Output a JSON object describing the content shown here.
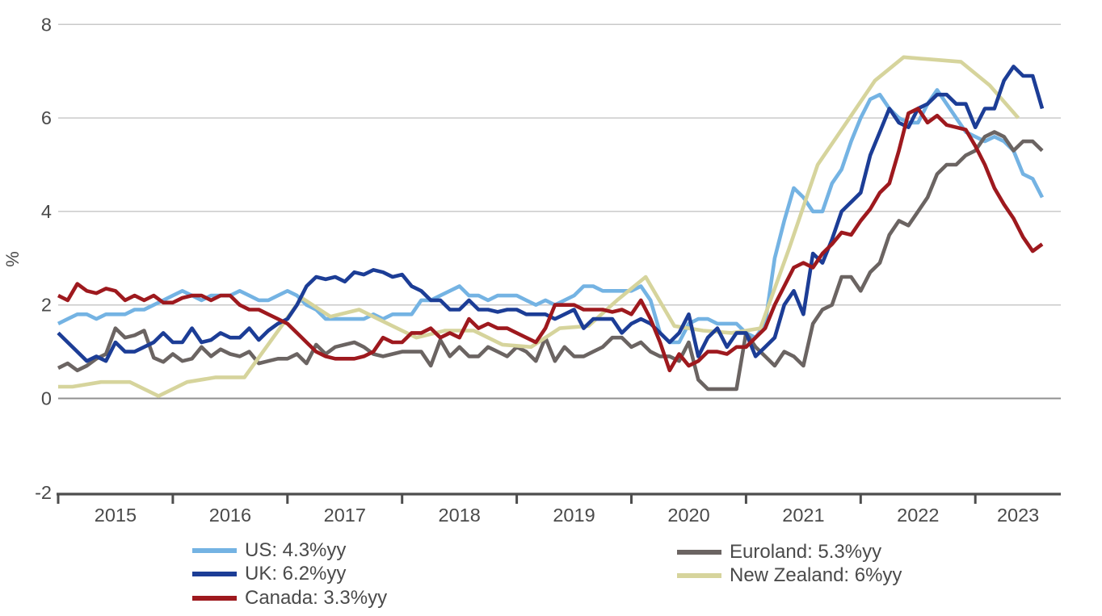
{
  "chart_data": {
    "type": "line",
    "title": "",
    "ylabel": "%",
    "x_tick_labels": [
      "2015",
      "2016",
      "2017",
      "2018",
      "2019",
      "2020",
      "2021",
      "2022",
      "2023"
    ],
    "y_tick_labels": [
      "8",
      "6",
      "4",
      "2",
      "0",
      "-2"
    ],
    "y_gridlines": [
      8,
      6,
      4,
      2,
      0
    ],
    "ylim": [
      -2,
      8
    ],
    "x_range_years": [
      "2015-01",
      "2023-08"
    ],
    "grid_color": "#c9c9c9",
    "zero_line_color": "#909090",
    "axis_color": "#4d4d4d",
    "tick_text_color": "#4a4a4a",
    "legend_position": "bottom",
    "series": [
      {
        "name": "us",
        "label": "US: 4.3%yy",
        "color": "#74b3e3",
        "freq": "monthly",
        "start": "2015-01",
        "values": [
          1.6,
          1.7,
          1.8,
          1.8,
          1.7,
          1.8,
          1.8,
          1.8,
          1.9,
          1.9,
          2.0,
          2.1,
          2.2,
          2.3,
          2.2,
          2.1,
          2.2,
          2.2,
          2.2,
          2.3,
          2.2,
          2.1,
          2.1,
          2.2,
          2.3,
          2.2,
          2.0,
          1.9,
          1.7,
          1.7,
          1.7,
          1.7,
          1.7,
          1.8,
          1.7,
          1.8,
          1.8,
          1.8,
          2.1,
          2.1,
          2.2,
          2.3,
          2.4,
          2.2,
          2.2,
          2.1,
          2.2,
          2.2,
          2.2,
          2.1,
          2.0,
          2.1,
          2.0,
          2.1,
          2.2,
          2.4,
          2.4,
          2.3,
          2.3,
          2.3,
          2.3,
          2.4,
          2.1,
          1.4,
          1.2,
          1.2,
          1.6,
          1.7,
          1.7,
          1.6,
          1.6,
          1.6,
          1.4,
          1.3,
          1.6,
          3.0,
          3.8,
          4.5,
          4.3,
          4.0,
          4.0,
          4.6,
          4.9,
          5.5,
          6.0,
          6.4,
          6.5,
          6.2,
          6.0,
          5.9,
          5.9,
          6.3,
          6.6,
          6.3,
          6.0,
          5.7,
          5.6,
          5.5,
          5.6,
          5.5,
          5.3,
          4.8,
          4.7,
          4.3
        ]
      },
      {
        "name": "euroland",
        "label": "Euroland: 5.3%yy",
        "color": "#6b6462",
        "freq": "monthly",
        "start": "2015-01",
        "values": [
          0.65,
          0.75,
          0.6,
          0.7,
          0.85,
          0.95,
          1.5,
          1.3,
          1.35,
          1.45,
          0.87,
          0.78,
          0.95,
          0.8,
          0.85,
          1.1,
          0.9,
          1.05,
          0.95,
          0.9,
          1.0,
          0.75,
          0.8,
          0.85,
          0.85,
          0.95,
          0.75,
          1.15,
          0.95,
          1.1,
          1.15,
          1.2,
          1.1,
          0.95,
          0.9,
          0.95,
          1.0,
          1.0,
          1.0,
          0.7,
          1.25,
          0.9,
          1.1,
          0.9,
          0.9,
          1.1,
          1.0,
          0.9,
          1.1,
          1.0,
          0.8,
          1.3,
          0.8,
          1.1,
          0.9,
          0.9,
          1.0,
          1.1,
          1.3,
          1.3,
          1.1,
          1.2,
          1.0,
          0.9,
          0.9,
          0.8,
          1.2,
          0.4,
          0.2,
          0.2,
          0.2,
          0.2,
          1.4,
          1.1,
          0.9,
          0.7,
          1.0,
          0.9,
          0.7,
          1.6,
          1.9,
          2.0,
          2.6,
          2.6,
          2.3,
          2.7,
          2.9,
          3.5,
          3.8,
          3.7,
          4.0,
          4.3,
          4.8,
          5.0,
          5.0,
          5.2,
          5.3,
          5.6,
          5.7,
          5.6,
          5.3,
          5.5,
          5.5,
          5.3
        ]
      },
      {
        "name": "new-zealand",
        "label": "New Zealand: 6%yy",
        "color": "#d6d49c",
        "freq": "quarterly",
        "start": "2015-Q1",
        "values": [
          0.25,
          0.35,
          0.35,
          0.05,
          0.35,
          0.45,
          0.45,
          1.3,
          2.15,
          1.75,
          1.9,
          1.6,
          1.3,
          1.45,
          1.45,
          1.15,
          1.1,
          1.5,
          1.55,
          2.1,
          2.6,
          1.55,
          1.45,
          1.4,
          1.5,
          3.2,
          5.0,
          5.9,
          6.8,
          7.3,
          7.25,
          7.2,
          6.7,
          6.0
        ]
      },
      {
        "name": "uk",
        "label": "UK: 6.2%yy",
        "color": "#1c3d96",
        "freq": "monthly",
        "start": "2015-01",
        "values": [
          1.4,
          1.2,
          1.0,
          0.8,
          0.9,
          0.8,
          1.2,
          1.0,
          1.0,
          1.1,
          1.2,
          1.4,
          1.2,
          1.2,
          1.5,
          1.2,
          1.25,
          1.4,
          1.3,
          1.3,
          1.5,
          1.25,
          1.45,
          1.6,
          1.7,
          2.0,
          2.4,
          2.6,
          2.55,
          2.6,
          2.5,
          2.7,
          2.65,
          2.75,
          2.7,
          2.6,
          2.65,
          2.4,
          2.3,
          2.1,
          2.1,
          1.9,
          1.9,
          2.1,
          1.9,
          1.9,
          1.85,
          1.9,
          1.9,
          1.8,
          1.8,
          1.8,
          1.7,
          1.8,
          1.9,
          1.5,
          1.7,
          1.7,
          1.7,
          1.4,
          1.6,
          1.7,
          1.6,
          1.4,
          1.2,
          1.4,
          1.8,
          0.9,
          1.3,
          1.5,
          1.1,
          1.4,
          1.4,
          0.9,
          1.1,
          1.3,
          2.0,
          2.3,
          1.8,
          3.1,
          2.9,
          3.4,
          4.0,
          4.2,
          4.4,
          5.2,
          5.7,
          6.2,
          5.9,
          5.8,
          6.2,
          6.3,
          6.5,
          6.5,
          6.3,
          6.3,
          5.8,
          6.2,
          6.2,
          6.8,
          7.1,
          6.9,
          6.9,
          6.2
        ]
      },
      {
        "name": "canada",
        "label": "Canada: 3.3%yy",
        "color": "#9e191e",
        "freq": "monthly",
        "start": "2015-01",
        "values": [
          2.2,
          2.1,
          2.45,
          2.3,
          2.25,
          2.35,
          2.3,
          2.1,
          2.2,
          2.1,
          2.2,
          2.05,
          2.05,
          2.15,
          2.2,
          2.2,
          2.1,
          2.2,
          2.2,
          2.0,
          1.9,
          1.9,
          1.8,
          1.7,
          1.6,
          1.4,
          1.2,
          1.0,
          0.9,
          0.85,
          0.85,
          0.85,
          0.9,
          1.0,
          1.3,
          1.2,
          1.2,
          1.4,
          1.4,
          1.5,
          1.3,
          1.4,
          1.3,
          1.7,
          1.5,
          1.6,
          1.5,
          1.5,
          1.4,
          1.3,
          1.2,
          1.5,
          2.0,
          2.0,
          2.0,
          1.9,
          1.9,
          1.9,
          1.85,
          1.9,
          1.8,
          2.1,
          1.7,
          1.2,
          0.6,
          0.95,
          0.7,
          0.8,
          1.0,
          1.0,
          0.95,
          1.1,
          1.1,
          1.3,
          1.5,
          2.0,
          2.4,
          2.8,
          2.9,
          2.8,
          3.1,
          3.3,
          3.55,
          3.5,
          3.8,
          4.05,
          4.4,
          4.6,
          5.3,
          6.1,
          6.2,
          5.9,
          6.05,
          5.85,
          5.8,
          5.75,
          5.4,
          5.0,
          4.5,
          4.15,
          3.85,
          3.45,
          3.15,
          3.3
        ]
      }
    ],
    "legend_columns": [
      [
        "us",
        "uk",
        "canada"
      ],
      [
        "euroland",
        "new-zealand"
      ]
    ]
  }
}
